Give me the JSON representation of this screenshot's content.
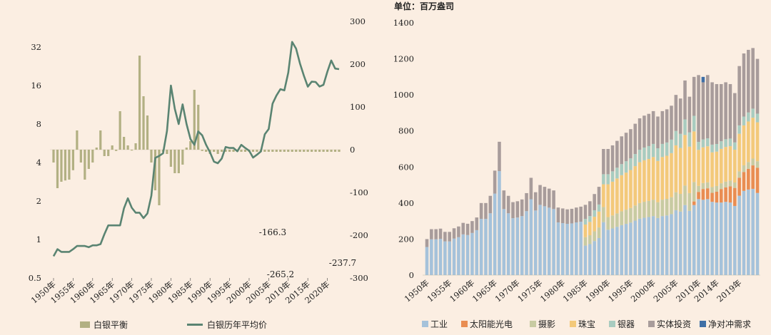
{
  "chart_data": [
    {
      "type": "bar+line",
      "title": "",
      "x_tick_labels": [
        "1950年",
        "1955年",
        "1960年",
        "1965年",
        "1970年",
        "1975年",
        "1980年",
        "1985年",
        "1990年",
        "1995年",
        "2000年",
        "2005年",
        "2010年",
        "2015年",
        "2020年"
      ],
      "years": [
        1950,
        1951,
        1952,
        1953,
        1954,
        1955,
        1956,
        1957,
        1958,
        1959,
        1960,
        1961,
        1962,
        1963,
        1964,
        1965,
        1966,
        1967,
        1968,
        1969,
        1970,
        1971,
        1972,
        1973,
        1974,
        1975,
        1976,
        1977,
        1978,
        1979,
        1980,
        1981,
        1982,
        1983,
        1984,
        1985,
        1986,
        1987,
        1988,
        1989,
        1990,
        1991,
        1992,
        1993,
        1994,
        1995,
        1996,
        1997,
        1998,
        1999,
        2000,
        2001,
        2002,
        2003,
        2004,
        2005,
        2006,
        2007,
        2008,
        2009,
        2010,
        2011,
        2012,
        2013,
        2014,
        2015,
        2016,
        2017,
        2018,
        2019,
        2020,
        2021,
        2022,
        2023
      ],
      "left_axis": {
        "scale": "log2",
        "ticks": [
          0.5,
          1,
          2,
          4,
          8,
          16,
          32
        ],
        "ylim": [
          0.5,
          32
        ]
      },
      "right_axis": {
        "ticks": [
          -300,
          -200,
          -100,
          0,
          100,
          200,
          300
        ],
        "ylim": [
          -300,
          300
        ]
      },
      "legend": [
        "白银平衡",
        "白银历年平均价"
      ],
      "series": [
        {
          "name": "白银平衡",
          "type": "bar",
          "axis": "right",
          "color": "#b2b083",
          "values": [
            -30,
            -90,
            -75,
            -72,
            -70,
            -48,
            45,
            -30,
            -70,
            -45,
            -30,
            5,
            45,
            -15,
            -15,
            10,
            -3,
            90,
            30,
            10,
            -2,
            15,
            220,
            125,
            80,
            -30,
            -95,
            -130,
            -5,
            -10,
            -40,
            -55,
            -55,
            -35,
            5,
            20,
            140,
            105,
            -3,
            -5,
            -10,
            -5,
            -10,
            -5,
            -5,
            -5,
            -5,
            -5,
            -5,
            -5,
            -5,
            -5,
            -5,
            -5,
            -5,
            -5,
            -5,
            -5,
            -5,
            -5,
            -5,
            -5,
            -5,
            -5,
            -5,
            -5,
            -5,
            -5,
            -5,
            -5,
            -5,
            -5,
            -5,
            -5
          ]
        },
        {
          "name": "白银历年平均价",
          "type": "line",
          "axis": "left",
          "color": "#5a8472",
          "values": [
            0.74,
            0.84,
            0.8,
            0.8,
            0.8,
            0.84,
            0.89,
            0.89,
            0.89,
            0.87,
            0.9,
            0.9,
            0.92,
            1.1,
            1.29,
            1.29,
            1.29,
            1.29,
            1.75,
            2.1,
            1.77,
            1.62,
            1.62,
            1.47,
            1.6,
            2.2,
            4.35,
            4.5,
            4.72,
            7.06,
            16.0,
            10.5,
            8.0,
            11.4,
            8.0,
            6.1,
            5.5,
            7.0,
            6.53,
            5.5,
            4.8,
            4.06,
            3.95,
            4.3,
            5.29,
            5.2,
            5.2,
            4.9,
            5.5,
            5.2,
            4.95,
            4.37,
            4.6,
            4.88,
            6.65,
            7.31,
            11.55,
            13.38,
            14.99,
            14.67,
            20.19,
            35.12,
            31.15,
            23.79,
            19.08,
            15.68,
            17.14,
            17.05,
            15.71,
            16.21,
            20.55,
            25.14,
            21.73,
            21.5
          ]
        }
      ],
      "annotations": [
        "-166.3",
        "-265.2",
        "-237.7"
      ]
    },
    {
      "type": "stacked_bar",
      "title": "",
      "unit_label": "单位：百万盎司",
      "x_tick_labels": [
        "1950年",
        "1955年",
        "1960年",
        "1965年",
        "1970年",
        "1975年",
        "1980年",
        "1985年",
        "1990年",
        "1995年",
        "2000年",
        "2005年",
        "2010年",
        "2014年",
        "2019年"
      ],
      "ylim": [
        0,
        1400
      ],
      "y_ticks": [
        0,
        200,
        400,
        600,
        800,
        1000,
        1200,
        1400
      ],
      "legend": [
        "工业",
        "太阳能光电",
        "摄影",
        "珠宝",
        "银器",
        "实体投资",
        "净对冲需求"
      ],
      "colors": {
        "工业": "#a5c2da",
        "太阳能光电": "#e98d52",
        "摄影": "#c8cba2",
        "珠宝": "#f3c97a",
        "银器": "#a9ccc0",
        "实体投资": "#a89c9b",
        "净对冲需求": "#3f6fa6"
      },
      "totals": [
        200,
        255,
        255,
        258,
        240,
        240,
        260,
        270,
        290,
        285,
        300,
        320,
        400,
        400,
        440,
        580,
        740,
        470,
        440,
        405,
        410,
        420,
        455,
        540,
        460,
        500,
        490,
        480,
        470,
        375,
        370,
        365,
        368,
        375,
        380,
        390,
        410,
        450,
        490,
        700,
        700,
        720,
        745,
        770,
        790,
        810,
        840,
        870,
        885,
        895,
        910,
        880,
        910,
        920,
        940,
        1000,
        980,
        1080,
        990,
        1080,
        1110,
        1100,
        1110,
        1070,
        1060,
        1060,
        1070,
        1060,
        1010,
        1160,
        1230,
        1250,
        1260,
        1200
      ],
      "solar_values": [
        0,
        0,
        0,
        0,
        0,
        0,
        0,
        0,
        0,
        0,
        0,
        0,
        0,
        0,
        0,
        0,
        0,
        0,
        0,
        0,
        0,
        0,
        0,
        0,
        0,
        0,
        0,
        0,
        0,
        0,
        0,
        0,
        0,
        0,
        0,
        0,
        0,
        0,
        0,
        0,
        0,
        0,
        0,
        0,
        0,
        0,
        0,
        0,
        0,
        0,
        0,
        0,
        0,
        0,
        0,
        0,
        0,
        0,
        0,
        20,
        40,
        60,
        60,
        50,
        60,
        75,
        80,
        90,
        100,
        100,
        105,
        115,
        130,
        140
      ],
      "hedge_values": [
        0,
        0,
        0,
        0,
        0,
        0,
        0,
        0,
        0,
        0,
        0,
        0,
        0,
        0,
        0,
        0,
        0,
        0,
        0,
        0,
        0,
        0,
        0,
        0,
        0,
        0,
        0,
        0,
        0,
        0,
        0,
        0,
        0,
        0,
        0,
        0,
        0,
        0,
        0,
        0,
        0,
        0,
        0,
        0,
        0,
        0,
        0,
        0,
        0,
        0,
        0,
        0,
        0,
        0,
        0,
        0,
        0,
        0,
        0,
        0,
        0,
        30,
        0,
        0,
        0,
        0,
        0,
        0,
        0,
        0,
        0,
        0,
        0,
        0
      ]
    }
  ]
}
